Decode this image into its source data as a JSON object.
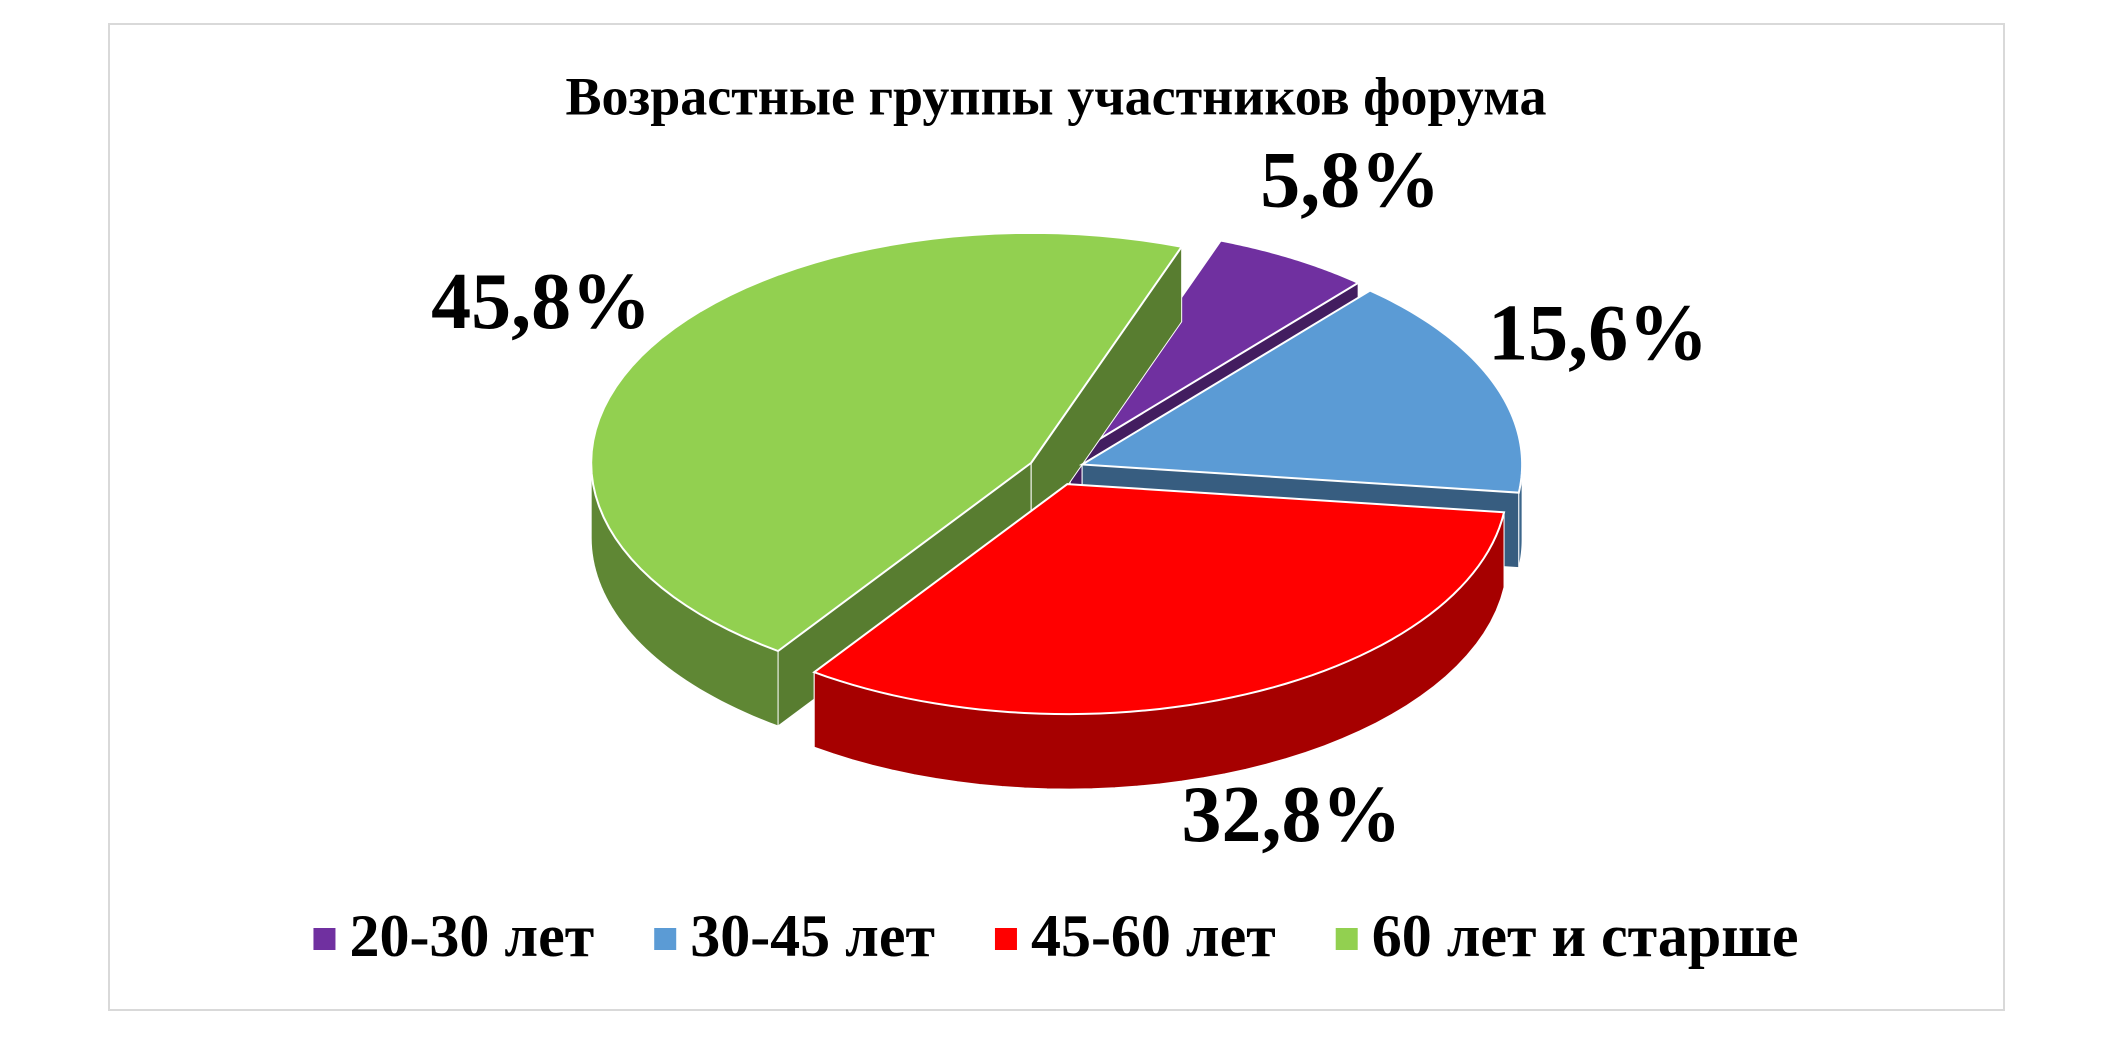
{
  "chart_data": {
    "type": "pie",
    "title": "Возрастные группы участников форума",
    "categories": [
      "20-30 лет",
      "30-45 лет",
      "45-60 лет",
      "60 лет и старше"
    ],
    "values": [
      5.8,
      15.6,
      32.8,
      45.8
    ],
    "value_labels": [
      "5,8%",
      "15,6%",
      "32,8%",
      "45,8%"
    ],
    "colors": [
      "#7030a0",
      "#5b9bd5",
      "#ff0000",
      "#92d050"
    ]
  }
}
